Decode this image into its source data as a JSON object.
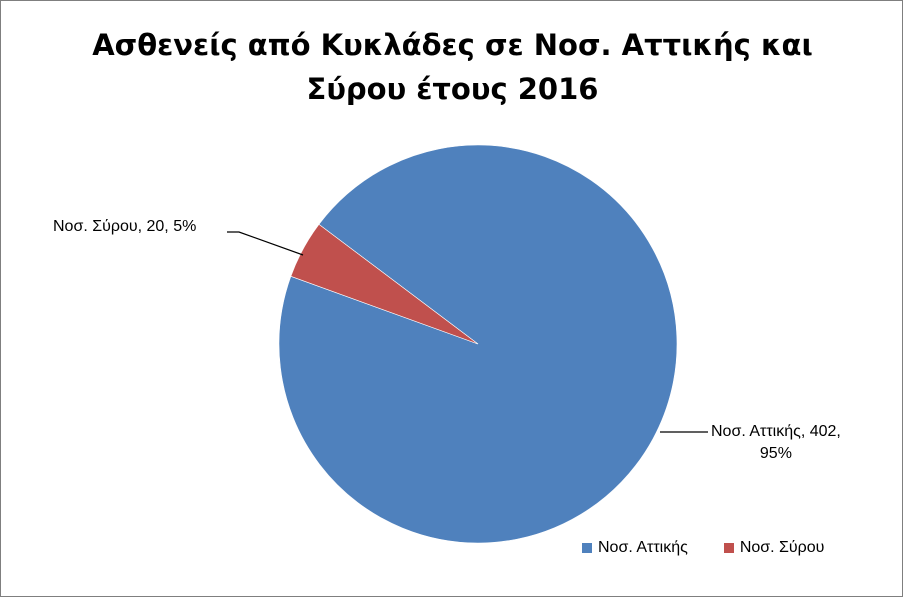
{
  "chart_data": {
    "type": "pie",
    "title_lines": [
      "Ασθενείς από Κυκλάδες σε Νοσ. Αττικής και",
      "Σύρου έτους 2016"
    ],
    "slices": [
      {
        "name": "Νοσ. Αττικής",
        "value": 402,
        "percent": "95%",
        "color": "#4f81bd",
        "label_line1": "Νοσ. Αττικής, 402,",
        "label_line2": "95%"
      },
      {
        "name": "Νοσ. Σύρου",
        "value": 20,
        "percent": "5%",
        "color": "#c0504d",
        "label_line1": "Νοσ. Σύρου, 20, 5%"
      }
    ],
    "legend": {
      "position": "bottom-right",
      "entries": [
        {
          "label": "Νοσ. Αττικής",
          "color": "#4f81bd"
        },
        {
          "label": "Νοσ. Σύρου",
          "color": "#c0504d"
        }
      ]
    }
  }
}
